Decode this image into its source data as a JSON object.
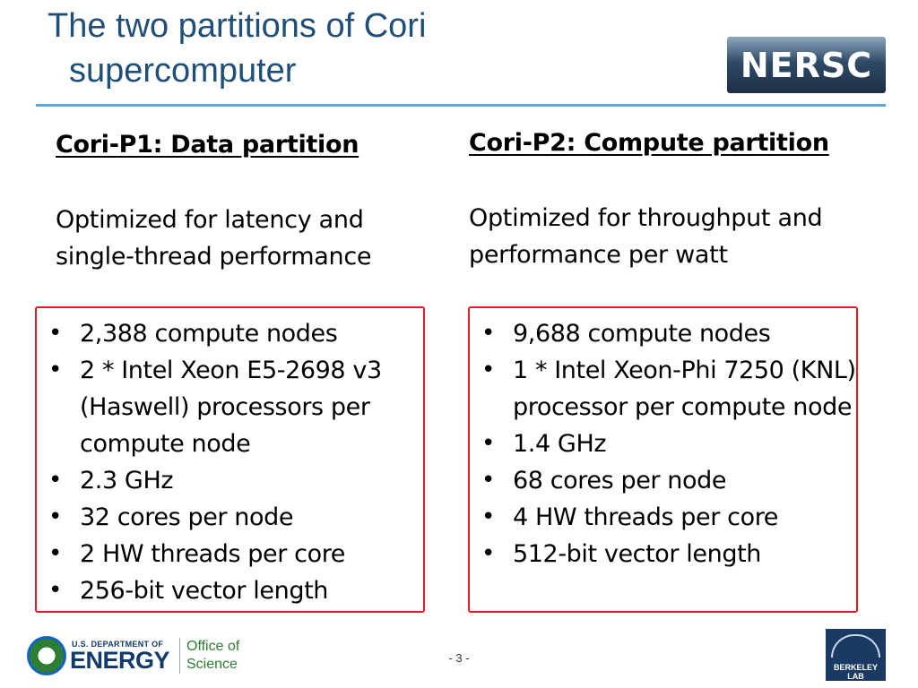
{
  "title": {
    "line1": "The two partitions of Cori",
    "line2": "supercomputer"
  },
  "logo": {
    "text": "NERSC"
  },
  "left": {
    "heading": "Cori-P1: Data partition",
    "description": "Optimized for latency and\nsingle-thread performance",
    "items": [
      "2,388 compute nodes",
      "2 * Intel Xeon E5-2698 v3 (Haswell) processors per compute node",
      "2.3 GHz",
      "32 cores per node",
      "2 HW threads per core",
      "256-bit vector length"
    ]
  },
  "right": {
    "heading": "Cori-P2: Compute partition",
    "description": "Optimized for throughput and\nperformance per watt",
    "items": [
      "9,688 compute nodes",
      "1 * Intel Xeon-Phi 7250 (KNL) processor per compute node",
      "1.4 GHz",
      "68 cores per node",
      "4 HW threads per core",
      "512-bit vector length"
    ]
  },
  "footer": {
    "doe_small": "U.S. DEPARTMENT OF",
    "doe_big": "ENERGY",
    "office": "Office of\nScience",
    "page": "- 3 -",
    "berkeley": "BERKELEY LAB"
  },
  "colors": {
    "title": "#1f4e79",
    "rule": "#5aa5d6",
    "box_border": "#e01b24"
  }
}
